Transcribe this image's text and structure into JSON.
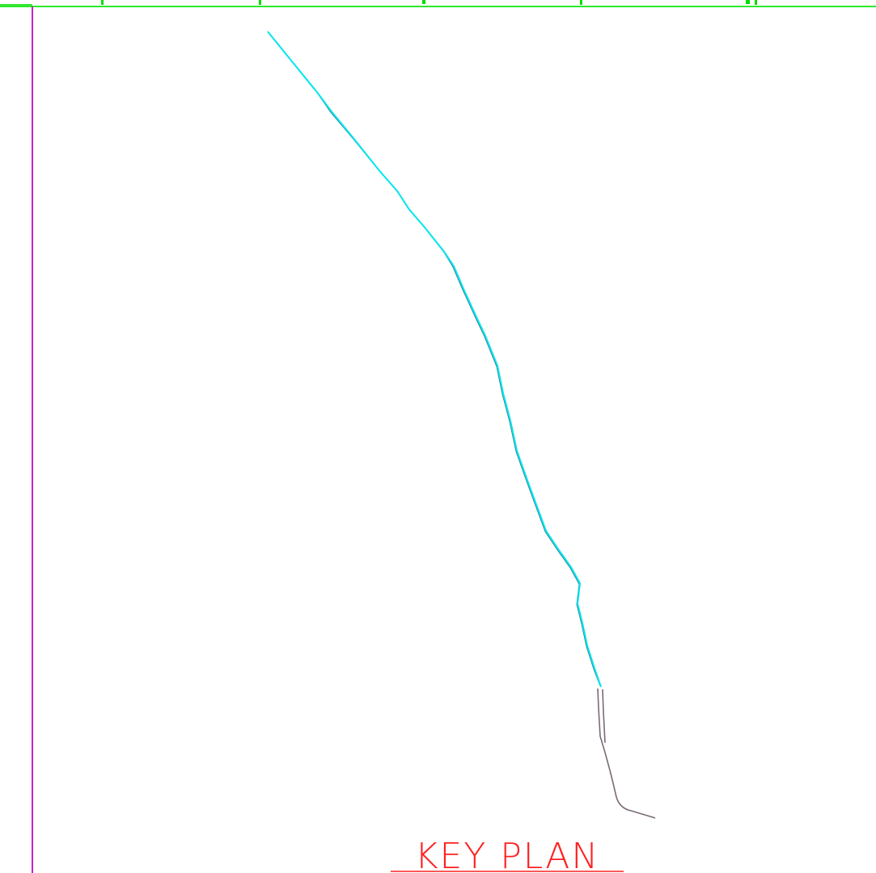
{
  "title": "KEY PLAN",
  "colors": {
    "frame_top": "#2ee82e",
    "frame_top_marks": "#00dd00",
    "frame_left": "#cc22cc",
    "alignment": "#00e5ee",
    "alignment_dark": "#2a7a8a",
    "existing_route": "#7a6a78",
    "title": "#ff2020"
  },
  "icons": {
    "alignment": "cyan-alignment-polyline",
    "existing": "grey-existing-route-polyline"
  }
}
